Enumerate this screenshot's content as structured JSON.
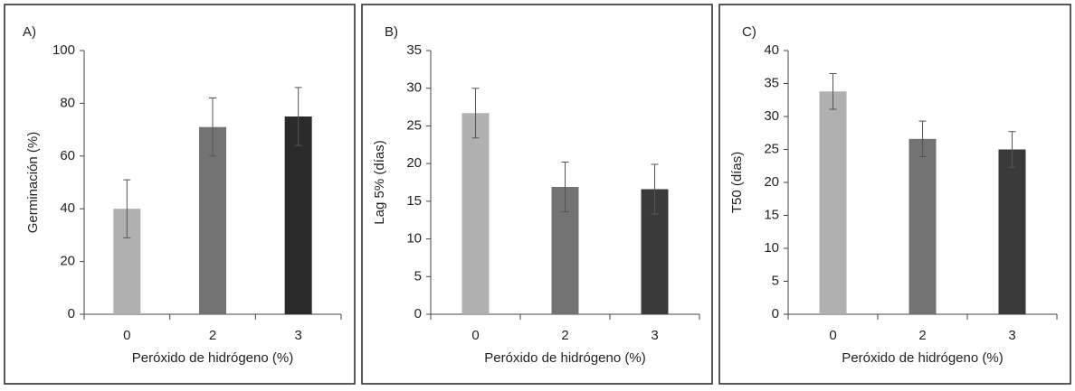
{
  "chart_data": [
    {
      "type": "bar",
      "title": "A)",
      "ylabel": "Germinación (%)",
      "xlabel": "Peróxido de hidrógeno (%)",
      "categories": [
        "0",
        "2",
        "3"
      ],
      "values": [
        40,
        71,
        75
      ],
      "errors": [
        11,
        11,
        11
      ],
      "colors": [
        "#b0b0b0",
        "#737373",
        "#2b2b2b"
      ],
      "ylim": [
        0,
        100
      ],
      "yticks": [
        0,
        20,
        40,
        60,
        80,
        100
      ]
    },
    {
      "type": "bar",
      "title": "B)",
      "ylabel": "Lag 5% (días)",
      "xlabel": "Peróxido de hidrógeno (%)",
      "categories": [
        "0",
        "2",
        "3"
      ],
      "values": [
        26.7,
        16.9,
        16.6
      ],
      "errors": [
        3.3,
        3.3,
        3.3
      ],
      "colors": [
        "#b0b0b0",
        "#737373",
        "#3a3a3a"
      ],
      "ylim": [
        0,
        35
      ],
      "yticks": [
        0,
        5,
        10,
        15,
        20,
        25,
        30,
        35
      ]
    },
    {
      "type": "bar",
      "title": "C)",
      "ylabel": "T50 (días)",
      "xlabel": "Peróxido de hidrógeno (%)",
      "categories": [
        "0",
        "2",
        "3"
      ],
      "values": [
        33.8,
        26.6,
        25.0
      ],
      "errors": [
        2.7,
        2.7,
        2.7
      ],
      "colors": [
        "#b0b0b0",
        "#737373",
        "#3a3a3a"
      ],
      "ylim": [
        0,
        40
      ],
      "yticks": [
        0,
        5,
        10,
        15,
        20,
        25,
        30,
        35,
        40
      ]
    }
  ]
}
